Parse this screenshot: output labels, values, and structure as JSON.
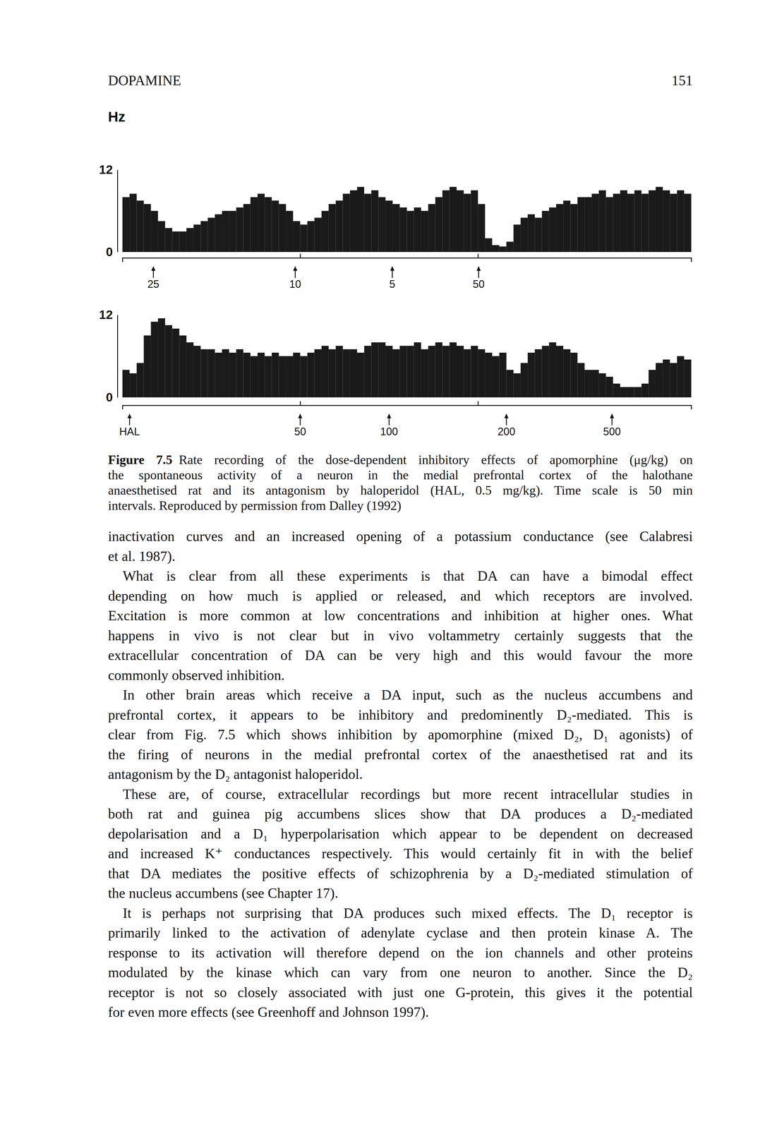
{
  "header": {
    "running_head": "DOPAMINE",
    "page": "151"
  },
  "chart_data": [
    {
      "type": "histogram",
      "y_label": "Hz",
      "color": "#1a1a1a",
      "xlim": [
        0,
        160
      ],
      "xticks": [
        50,
        100
      ],
      "ylim": [
        0,
        12
      ],
      "yticks": [
        0,
        12
      ],
      "tick_labels": "y",
      "bins": [
        0,
        2,
        4,
        6,
        8,
        10,
        12,
        14,
        16,
        18,
        20,
        22,
        24,
        26,
        28,
        30,
        32,
        34,
        36,
        38,
        40,
        42,
        44,
        46,
        48,
        50,
        52,
        54,
        56,
        58,
        60,
        62,
        64,
        66,
        68,
        70,
        72,
        74,
        76,
        78,
        80,
        82,
        84,
        86,
        88,
        90,
        92,
        94,
        96,
        98,
        100,
        102,
        104,
        106,
        108,
        110,
        112,
        114,
        116,
        118,
        120,
        122,
        124,
        126,
        128,
        130,
        132,
        134,
        136,
        138,
        140,
        142,
        144,
        146,
        148,
        150,
        152,
        154,
        156,
        158,
        160
      ],
      "values": [
        8,
        8.5,
        7.5,
        7,
        6,
        4.5,
        3.5,
        3,
        3,
        3.5,
        4,
        4.5,
        5,
        5.5,
        6,
        6,
        6.5,
        7,
        8,
        8.5,
        8,
        7.5,
        7,
        6,
        4.5,
        4,
        4.5,
        5,
        6,
        7,
        7.5,
        8.5,
        9,
        9.5,
        8.5,
        9,
        8,
        7.5,
        7,
        6.5,
        6,
        6.5,
        6,
        7,
        8,
        9,
        9.5,
        9,
        8.5,
        9,
        7,
        2,
        1,
        0.8,
        1.5,
        4,
        5,
        5.5,
        5,
        6,
        6.5,
        7,
        7.5,
        7,
        8,
        8,
        8.5,
        9,
        8,
        8.5,
        9,
        8.5,
        9,
        8.5,
        9,
        9.5,
        9,
        8.5,
        9,
        8.5
      ],
      "annotations": [
        {
          "x": 8.7,
          "label": "25"
        },
        {
          "x": 48.6,
          "label": "10"
        },
        {
          "x": 75.9,
          "label": "5"
        },
        {
          "x": 100.2,
          "label": "50"
        }
      ]
    },
    {
      "type": "histogram",
      "color": "#1a1a1a",
      "xlim": [
        0,
        160
      ],
      "xticks": [
        50,
        100
      ],
      "ylim": [
        0,
        12
      ],
      "yticks": [
        0,
        12
      ],
      "tick_labels": "y",
      "bins": [
        0,
        2,
        4,
        6,
        8,
        10,
        12,
        14,
        16,
        18,
        20,
        22,
        24,
        26,
        28,
        30,
        32,
        34,
        36,
        38,
        40,
        42,
        44,
        46,
        48,
        50,
        52,
        54,
        56,
        58,
        60,
        62,
        64,
        66,
        68,
        70,
        72,
        74,
        76,
        78,
        80,
        82,
        84,
        86,
        88,
        90,
        92,
        94,
        96,
        98,
        100,
        102,
        104,
        106,
        108,
        110,
        112,
        114,
        116,
        118,
        120,
        122,
        124,
        126,
        128,
        130,
        132,
        134,
        136,
        138,
        140,
        142,
        144,
        146,
        148,
        150,
        152,
        154,
        156,
        158,
        160
      ],
      "values": [
        4,
        3.5,
        5,
        9,
        11,
        11.5,
        10.5,
        10,
        9,
        8,
        7.5,
        7,
        7,
        6.5,
        7,
        6.5,
        7,
        6.5,
        6,
        6.5,
        6,
        6.5,
        6,
        6,
        6.5,
        6,
        6.5,
        7,
        7.5,
        7,
        7.5,
        7,
        7,
        6.5,
        7.5,
        8,
        8,
        7.5,
        7,
        7.5,
        7.5,
        8,
        7,
        7.5,
        8,
        7.5,
        8,
        7.5,
        7,
        7.5,
        7,
        6.5,
        6,
        6.5,
        4,
        3.5,
        5,
        6.5,
        7,
        7.5,
        8,
        7.5,
        7,
        6.5,
        5,
        4,
        4,
        3.5,
        3,
        2,
        1.5,
        1.5,
        1.5,
        2,
        4,
        5,
        5.5,
        5,
        6,
        5.5
      ],
      "annotations": [
        {
          "x": 2,
          "label": "HAL"
        },
        {
          "x": 50,
          "label": "50"
        },
        {
          "x": 75,
          "label": "100"
        },
        {
          "x": 108,
          "label": "200"
        },
        {
          "x": 137.7,
          "label": "500"
        }
      ]
    }
  ],
  "caption": {
    "label": "Figure 7.5",
    "lines": [
      "Rate recording of the dose-dependent inhibitory effects of apomorphine (μg/kg) on",
      "the spontaneous activity of a neuron in the medial prefrontal cortex of the halothane",
      "anaesthetised rat and its antagonism by haloperidol (HAL, 0.5 mg/kg). Time scale is 50 min",
      "intervals. Reproduced by permission from Dalley (1992)"
    ]
  },
  "paragraphs": [
    {
      "indent": false,
      "lines": [
        "inactivation curves and an increased opening of a potassium conductance (see Calabresi",
        "et al. 1987)."
      ]
    },
    {
      "indent": true,
      "lines": [
        "What is clear from all these experiments is that DA can have a bimodal effect",
        "depending on how much is applied or released, and which receptors are involved.",
        "Excitation is more common at low concentrations and inhibition at higher ones. What",
        "happens in vivo is not clear but in vivo voltammetry certainly suggests that the",
        "extracellular concentration of DA can be very high and this would favour the more",
        "commonly observed inhibition."
      ]
    },
    {
      "indent": true,
      "lines": [
        "In other brain areas which receive a DA input, such as the nucleus accumbens and",
        "prefrontal cortex, it appears to be inhibitory and predominently D₂-mediated. This is",
        "clear from Fig. 7.5 which shows inhibition by apomorphine (mixed D₂, D₁ agonists) of",
        "the firing of neurons in the medial prefrontal cortex of the anaesthetised rat and its",
        "antagonism by the D₂ antagonist haloperidol."
      ]
    },
    {
      "indent": true,
      "lines": [
        "These are, of course, extracellular recordings but more recent intracellular studies in",
        "both rat and guinea pig accumbens slices show that DA produces a D₂-mediated",
        "depolarisation and a D₁ hyperpolarisation which appear to be dependent on decreased",
        "and increased K⁺ conductances respectively. This would certainly fit in with the belief",
        "that DA mediates the positive effects of schizophrenia by a D₂-mediated stimulation of",
        "the nucleus accumbens (see Chapter 17)."
      ]
    },
    {
      "indent": true,
      "lines": [
        "It is perhaps not surprising that DA produces such mixed effects. The D₁ receptor is",
        "primarily linked to the activation of adenylate cyclase and then protein kinase A. The",
        "response to its activation will therefore depend on the ion channels and other proteins",
        "modulated by the kinase which can vary from one neuron to another. Since the D₂",
        "receptor is not so closely associated with just one G-protein, this gives it the potential",
        "for even more effects (see Greenhoff and Johnson 1997)."
      ]
    }
  ]
}
